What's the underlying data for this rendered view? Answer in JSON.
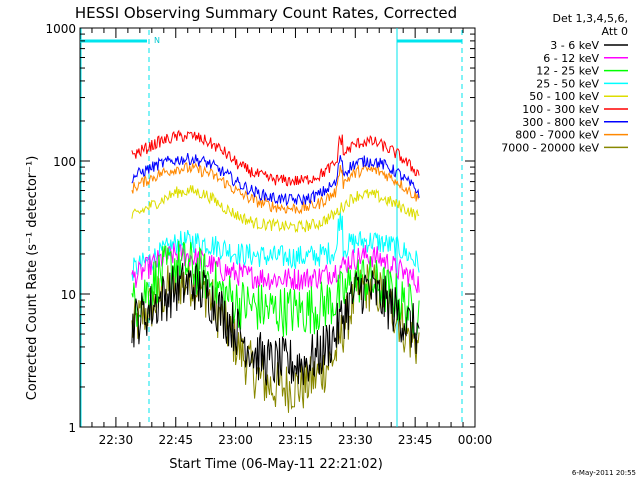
{
  "chart_data": {
    "type": "line",
    "title": "HESSI Observing Summary Count Rates, Corrected",
    "xlabel": "Start Time (06-May-11 22:21:02)",
    "ylabel": "Corrected Count Rate (s⁻¹ detector⁻¹)",
    "yscale": "log",
    "ylim": [
      1,
      1000
    ],
    "xlim_minutes": [
      0,
      99
    ],
    "x_ticks": [
      {
        "label": "22:30",
        "minute": 9
      },
      {
        "label": "22:45",
        "minute": 24
      },
      {
        "label": "23:00",
        "minute": 39
      },
      {
        "label": "23:15",
        "minute": 54
      },
      {
        "label": "23:30",
        "minute": 69
      },
      {
        "label": "23:45",
        "minute": 84
      },
      {
        "label": "00:00",
        "minute": 99
      }
    ],
    "y_ticks": [
      {
        "label": "1",
        "value": 1
      },
      {
        "label": "10",
        "value": 10
      },
      {
        "label": "100",
        "value": 100
      },
      {
        "label": "1000",
        "value": 1000
      }
    ],
    "grid": false,
    "legend_position": "right",
    "legend_header": [
      "Det 1,3,4,5,6,",
      "Att 0"
    ],
    "night_marker": "N",
    "data_start_minute": 13,
    "data_end_minute": 85,
    "orbit_x": [
      13,
      16,
      20,
      24,
      28,
      32,
      36,
      40,
      44,
      48,
      52,
      56,
      60,
      64,
      66,
      68,
      70,
      72,
      74,
      76,
      78,
      80,
      82,
      85
    ],
    "series": [
      {
        "name": "3 - 6 keV",
        "color": "#000000",
        "values": [
          6,
          7,
          9,
          11,
          12,
          10,
          7,
          5,
          3.5,
          3,
          3,
          3,
          3.5,
          5,
          7,
          9,
          11,
          11,
          10,
          9,
          8,
          7,
          6,
          5
        ]
      },
      {
        "name": "6 - 12 keV",
        "color": "#ff00ff",
        "values": [
          13,
          15,
          18,
          20,
          19,
          17,
          15,
          14,
          13.5,
          13,
          13,
          13,
          13.5,
          15,
          16.5,
          18,
          19,
          19.5,
          19,
          18,
          16.5,
          15,
          14,
          12
        ]
      },
      {
        "name": "12 - 25 keV",
        "color": "#00ff00",
        "values": [
          8,
          10,
          14,
          17,
          16,
          13,
          10,
          8.5,
          8,
          7.5,
          7.5,
          7.5,
          8,
          9,
          10,
          12,
          13,
          13,
          12,
          11,
          10,
          9,
          8,
          7
        ]
      },
      {
        "name": "25 - 50 keV",
        "color": "#00ffff",
        "values": [
          15,
          17,
          20,
          24,
          25,
          24,
          22,
          20,
          19.5,
          19,
          19,
          19,
          19.5,
          21,
          22,
          24,
          25,
          25,
          25,
          24,
          23,
          22,
          20,
          17
        ]
      },
      {
        "name": "50 - 100 keV",
        "color": "#dddd00",
        "values": [
          38,
          43,
          50,
          58,
          60,
          55,
          45,
          38,
          34,
          33,
          32,
          32,
          34,
          40,
          46,
          52,
          56,
          56,
          55,
          52,
          49,
          46,
          43,
          38
        ]
      },
      {
        "name": "100 - 300 keV",
        "color": "#ff0000",
        "values": [
          110,
          122,
          140,
          152,
          155,
          140,
          118,
          92,
          80,
          73,
          71,
          71,
          78,
          95,
          112,
          128,
          137,
          140,
          138,
          130,
          120,
          110,
          96,
          80
        ]
      },
      {
        "name": "300 - 800 keV",
        "color": "#0000ff",
        "values": [
          75,
          84,
          95,
          102,
          104,
          97,
          82,
          67,
          58,
          53,
          51,
          51,
          56,
          68,
          80,
          92,
          98,
          100,
          99,
          94,
          87,
          80,
          70,
          58
        ]
      },
      {
        "name": "800 - 7000 keV",
        "color": "#ff8800",
        "values": [
          62,
          70,
          80,
          88,
          88,
          82,
          70,
          57,
          50,
          46,
          44,
          44,
          48,
          58,
          68,
          78,
          84,
          86,
          85,
          81,
          75,
          69,
          61,
          52
        ]
      },
      {
        "name": "7000 - 20000 keV",
        "color": "#888800",
        "values": [
          5.5,
          7,
          9.5,
          12,
          12.5,
          10,
          6,
          3.8,
          2.5,
          2,
          2,
          2,
          2.5,
          3.5,
          5.5,
          8,
          10.5,
          11.5,
          11,
          9.5,
          8,
          6.5,
          5,
          4
        ]
      }
    ],
    "annotations": {
      "footer_date": "6-May-2011 20:55"
    }
  }
}
